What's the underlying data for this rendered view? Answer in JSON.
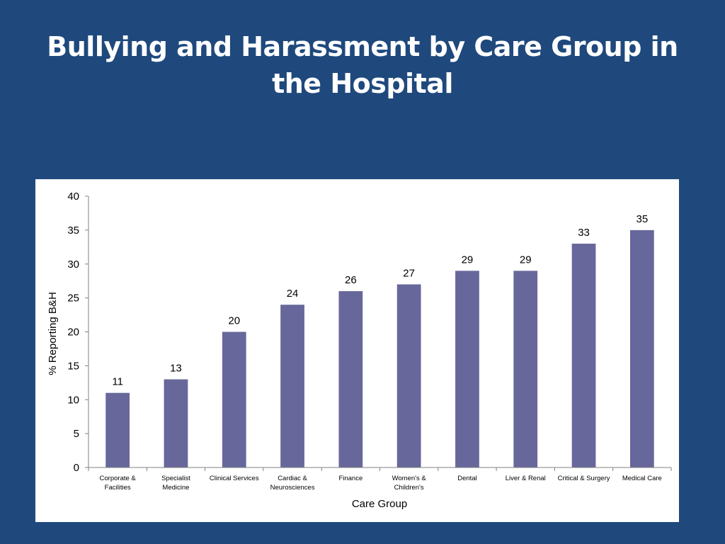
{
  "slide": {
    "title": "Bullying and Harassment by Care Group in the Hospital"
  },
  "colors": {
    "background": "#1f497d",
    "bar": "#67679b",
    "panel": "#ffffff",
    "axis": "#808080"
  },
  "chart_data": {
    "type": "bar",
    "title": "",
    "xlabel": "Care Group",
    "ylabel": "% Reporting B&H",
    "ylim": [
      0,
      40
    ],
    "yticks": [
      0,
      5,
      10,
      15,
      20,
      25,
      30,
      35,
      40
    ],
    "grid": false,
    "legend": "none",
    "categories": [
      [
        "Corporate &",
        "Facilities"
      ],
      [
        "Specialist",
        "Medicine"
      ],
      [
        "Clinical Services"
      ],
      [
        "Cardiac &",
        "Neurosciences"
      ],
      [
        "Finance"
      ],
      [
        "Women's &",
        "Children's"
      ],
      [
        "Dental"
      ],
      [
        "Liver & Renal"
      ],
      [
        "Critical & Surgery"
      ],
      [
        "Medical Care"
      ]
    ],
    "values": [
      11,
      13,
      20,
      24,
      26,
      27,
      29,
      29,
      33,
      35
    ],
    "data_labels": [
      "11",
      "13",
      "20",
      "24",
      "26",
      "27",
      "29",
      "29",
      "33",
      "35"
    ]
  }
}
